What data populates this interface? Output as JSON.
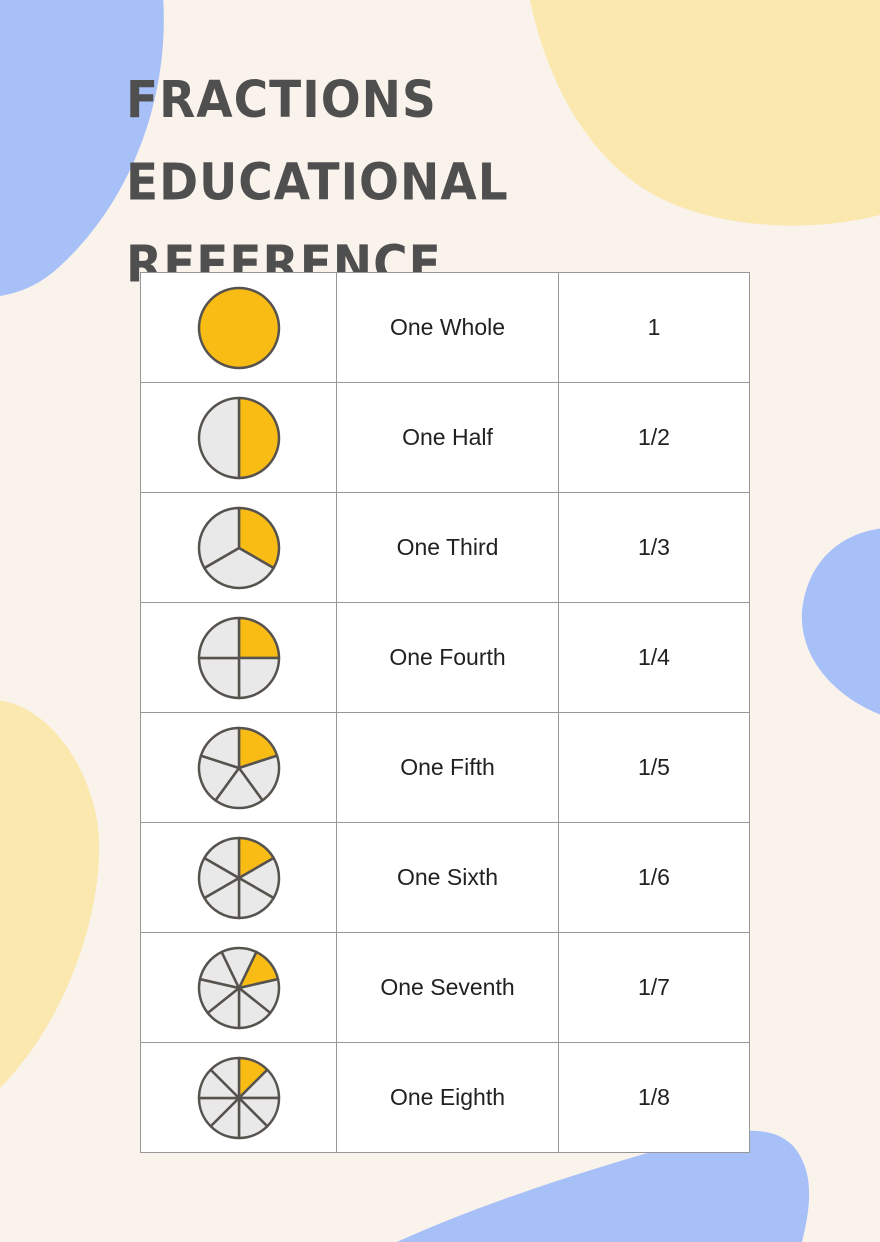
{
  "page": {
    "title_line1": "FRACTIONS EDUCATIONAL",
    "title_line2": "REFERENCE"
  },
  "colors": {
    "background": "#FAF3EC",
    "blob_blue": "#A8C0F8",
    "blob_yellow": "#FAE8AF",
    "pie_filled": "#F9BC15",
    "pie_empty": "#E9E9E9",
    "pie_stroke": "#56524D",
    "table_border": "#979797",
    "cell_background": "#FFFFFF",
    "title_color": "#4F4F4F",
    "text_color": "#212121"
  },
  "table": {
    "rows": [
      {
        "name": "One Whole",
        "value": "1",
        "slices": 1,
        "filled_slices": 1,
        "offset_deg": 0
      },
      {
        "name": "One Half",
        "value": "1/2",
        "slices": 2,
        "filled_slices": 1,
        "offset_deg": 0
      },
      {
        "name": "One Third",
        "value": "1/3",
        "slices": 3,
        "filled_slices": 1,
        "offset_deg": 0
      },
      {
        "name": "One Fourth",
        "value": "1/4",
        "slices": 4,
        "filled_slices": 1,
        "offset_deg": 0
      },
      {
        "name": "One Fifth",
        "value": "1/5",
        "slices": 5,
        "filled_slices": 1,
        "offset_deg": 0
      },
      {
        "name": "One Sixth",
        "value": "1/6",
        "slices": 6,
        "filled_slices": 1,
        "offset_deg": 0
      },
      {
        "name": "One Seventh",
        "value": "1/7",
        "slices": 7,
        "filled_slices": 1,
        "offset_deg": 25.714
      },
      {
        "name": "One Eighth",
        "value": "1/8",
        "slices": 8,
        "filled_slices": 1,
        "offset_deg": 0
      }
    ]
  }
}
